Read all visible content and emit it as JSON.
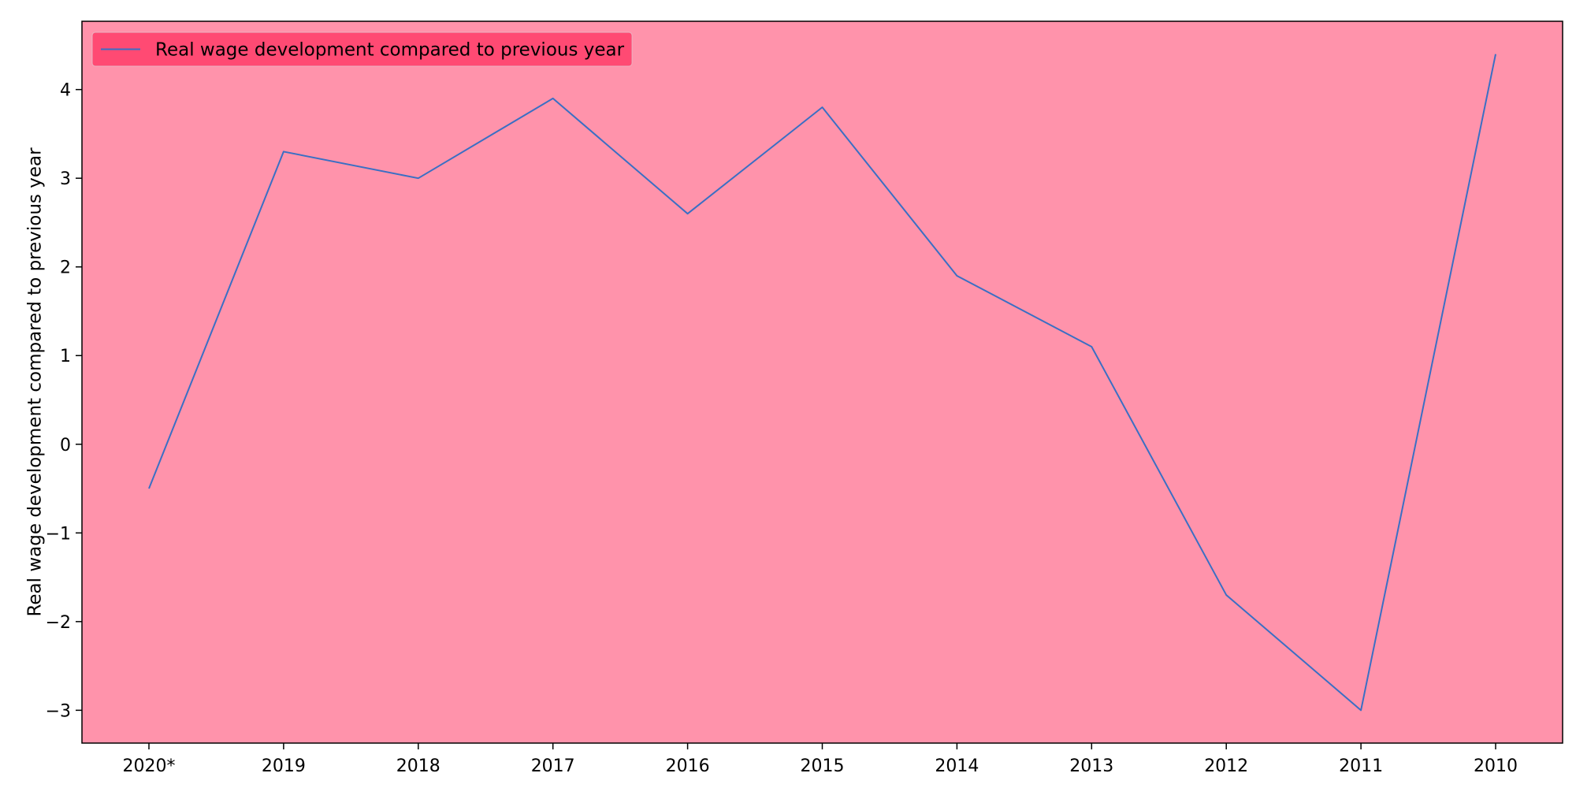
{
  "chart_data": {
    "type": "line",
    "title": "",
    "xlabel": "",
    "ylabel": "Real wage development compared to previous year",
    "categories": [
      "2020*",
      "2019",
      "2018",
      "2017",
      "2016",
      "2015",
      "2014",
      "2013",
      "2012",
      "2011",
      "2010"
    ],
    "series": [
      {
        "name": "Real wage development compared to previous year",
        "values": [
          -0.5,
          3.3,
          3.0,
          3.9,
          2.6,
          3.8,
          1.9,
          1.1,
          -1.7,
          -3.0,
          4.4
        ],
        "color": "#3a6fc4"
      }
    ],
    "yticks": [
      -3,
      -2,
      -1,
      0,
      1,
      2,
      3,
      4
    ],
    "ylim": [
      -3.37,
      4.77
    ],
    "grid": false,
    "legend_position": "top-left",
    "colors": {
      "plot_background": "#ff93ab",
      "legend_background": "#ff4a73",
      "axes_edge": "#000000"
    }
  }
}
